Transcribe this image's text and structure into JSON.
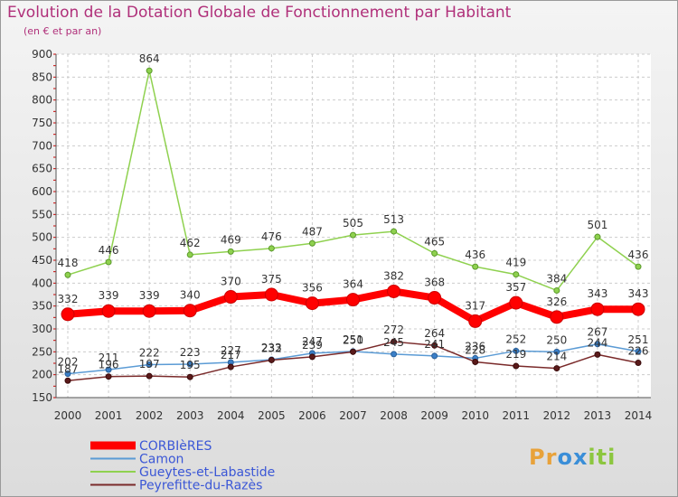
{
  "chart_data": {
    "type": "line",
    "title": "Evolution de la Dotation Globale de Fonctionnement par Habitant",
    "subtitle": "(en € et par an)",
    "xlabel": "",
    "ylabel": "",
    "ylim": [
      150,
      900
    ],
    "yticks": [
      150,
      200,
      250,
      300,
      350,
      400,
      450,
      500,
      550,
      600,
      650,
      700,
      750,
      800,
      850,
      900
    ],
    "categories": [
      "2000",
      "2001",
      "2002",
      "2003",
      "2004",
      "2005",
      "2006",
      "2007",
      "2008",
      "2009",
      "2010",
      "2011",
      "2012",
      "2013",
      "2014"
    ],
    "legend_position": "bottom-left",
    "grid": true,
    "series": [
      {
        "name": "CORBIèRES",
        "color": "#ff0000",
        "values": [
          332,
          339,
          339,
          340,
          370,
          375,
          356,
          364,
          382,
          368,
          317,
          357,
          326,
          343,
          343
        ]
      },
      {
        "name": "Camon",
        "color": "#5b9bd5",
        "values": [
          202,
          211,
          222,
          223,
          227,
          233,
          247,
          251,
          245,
          241,
          236,
          252,
          250,
          267,
          251
        ]
      },
      {
        "name": "Gueytes-et-Labastide",
        "color": "#8fd14f",
        "values": [
          418,
          446,
          864,
          462,
          469,
          476,
          487,
          505,
          513,
          465,
          436,
          419,
          384,
          501,
          436
        ]
      },
      {
        "name": "Peyrefitte-du-Razès",
        "color": "#7a2a2a",
        "values": [
          187,
          196,
          197,
          195,
          217,
          232,
          239,
          250,
          272,
          264,
          228,
          219,
          214,
          244,
          226
        ]
      }
    ]
  },
  "logo": {
    "letters": [
      "P",
      "r",
      "o",
      "x",
      "i",
      "t",
      "i"
    ],
    "colors": [
      "#e8a23a",
      "#e8a23a",
      "#3a8ed8",
      "#3a8ed8",
      "#8cc63f",
      "#8cc63f",
      "#8cc63f"
    ]
  }
}
